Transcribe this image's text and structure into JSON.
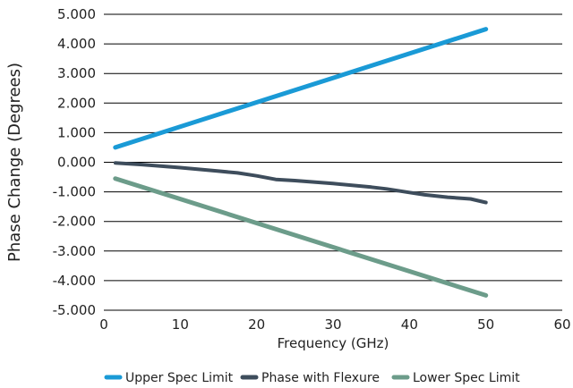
{
  "chart_data": {
    "type": "line",
    "xlabel": "Frequency (GHz)",
    "ylabel": "Phase Change (Degrees)",
    "xlim": [
      0,
      60
    ],
    "ylim": [
      -5,
      5
    ],
    "x_ticks": [
      "0",
      "10",
      "20",
      "30",
      "40",
      "50",
      "60"
    ],
    "x_tick_values": [
      0,
      10,
      20,
      30,
      40,
      50,
      60
    ],
    "y_ticks": [
      "5.000",
      "4.000",
      "3.000",
      "2.000",
      "1.000",
      "0.000",
      "-1.000",
      "-2.000",
      "-3.000",
      "-4.000",
      "-5.000"
    ],
    "y_tick_values": [
      5,
      4,
      3,
      2,
      1,
      0,
      -1,
      -2,
      -3,
      -4,
      -5
    ],
    "grid": "horizontal",
    "legend_position": "bottom",
    "series": [
      {
        "name": "Upper Spec Limit",
        "color": "#1a9ad6",
        "x": [
          1.5,
          50
        ],
        "y": [
          0.5,
          4.5
        ]
      },
      {
        "name": "Phase with Flexure",
        "color": "#3e4d5c",
        "x": [
          1.5,
          5,
          10,
          15,
          17.5,
          20,
          22.5,
          25,
          30,
          35,
          37,
          40,
          42,
          45,
          48,
          50
        ],
        "y": [
          -0.02,
          -0.08,
          -0.18,
          -0.3,
          -0.36,
          -0.46,
          -0.58,
          -0.62,
          -0.72,
          -0.84,
          -0.9,
          -1.02,
          -1.1,
          -1.18,
          -1.24,
          -1.36
        ]
      },
      {
        "name": "Lower Spec Limit",
        "color": "#6c9c8a",
        "x": [
          1.5,
          50
        ],
        "y": [
          -0.55,
          -4.5
        ]
      }
    ]
  }
}
